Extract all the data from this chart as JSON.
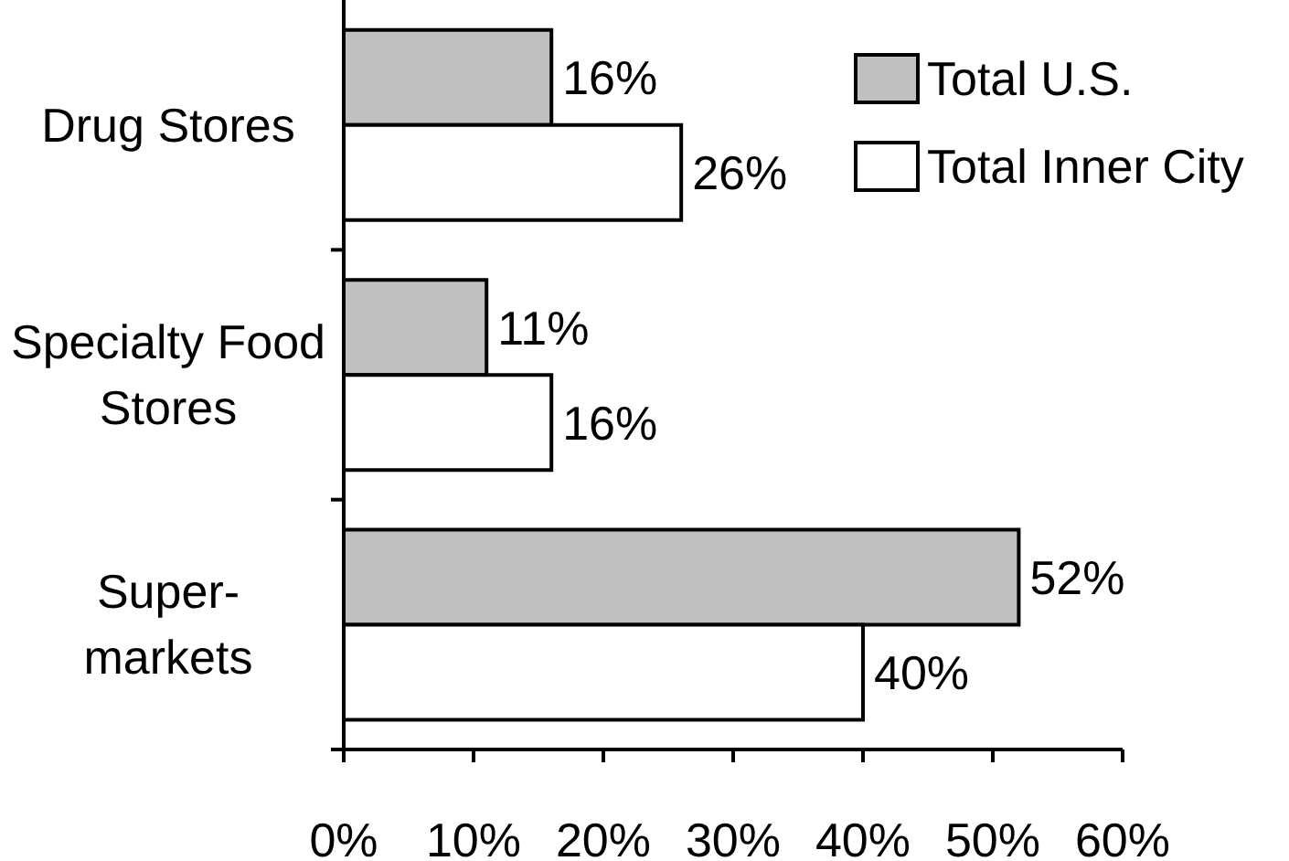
{
  "chart_data": {
    "type": "bar",
    "orientation": "horizontal",
    "categories": [
      "Drug Stores",
      "Specialty Food\nStores",
      "Super-\nmarkets"
    ],
    "series": [
      {
        "name": "Total U.S.",
        "color": "#c0c0c0",
        "values": [
          16,
          11,
          52
        ],
        "value_labels": [
          "16%",
          "11%",
          "52%"
        ]
      },
      {
        "name": "Total Inner City",
        "color": "#ffffff",
        "values": [
          26,
          16,
          40
        ],
        "value_labels": [
          "26%",
          "16%",
          "40%"
        ]
      }
    ],
    "xlim": [
      0,
      60
    ],
    "xticks": [
      {
        "value": 0,
        "label": "0%"
      },
      {
        "value": 10,
        "label": "10%"
      },
      {
        "value": 20,
        "label": "20%"
      },
      {
        "value": 30,
        "label": "30%"
      },
      {
        "value": 40,
        "label": "40%"
      },
      {
        "value": 50,
        "label": "50%"
      },
      {
        "value": 60,
        "label": "60%"
      }
    ],
    "legend": "top right"
  }
}
